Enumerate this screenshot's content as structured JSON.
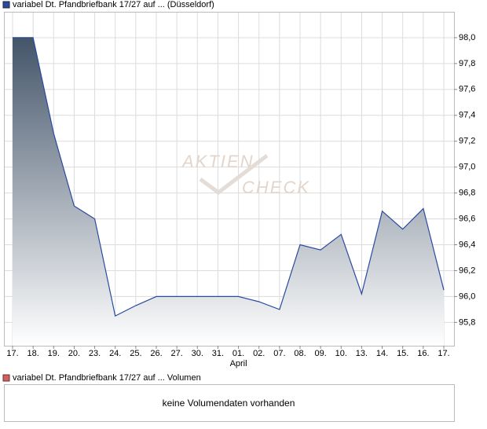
{
  "chart_data": {
    "type": "area",
    "categories": [
      "17.",
      "18.",
      "19.",
      "20.",
      "23.",
      "24.",
      "25.",
      "26.",
      "27.",
      "30.",
      "31.",
      "01.",
      "02.",
      "07.",
      "08.",
      "09.",
      "10.",
      "13.",
      "14.",
      "15.",
      "16.",
      "17."
    ],
    "x_group_labels": [
      null,
      null,
      null,
      null,
      null,
      null,
      null,
      null,
      null,
      null,
      null,
      "April",
      null,
      null,
      null,
      null,
      null,
      null,
      null,
      null,
      null,
      null
    ],
    "series": [
      {
        "name": "variabel Dt. Pfandbriefbank 17/27 auf ... (Düsseldorf)",
        "color": "#2a4aa0",
        "values": [
          98.0,
          98.0,
          97.26,
          96.7,
          96.6,
          95.85,
          95.93,
          96.0,
          96.0,
          96.0,
          96.0,
          96.0,
          95.96,
          95.9,
          96.4,
          96.36,
          96.48,
          96.02,
          96.66,
          96.52,
          96.68,
          96.05
        ]
      }
    ],
    "ylim": [
      95.62,
      98.2
    ],
    "yticks": [
      {
        "value": 95.8,
        "label": "95,8"
      },
      {
        "value": 96.0,
        "label": "96,0"
      },
      {
        "value": 96.2,
        "label": "96,2"
      },
      {
        "value": 96.4,
        "label": "96,4"
      },
      {
        "value": 96.6,
        "label": "96,6"
      },
      {
        "value": 96.8,
        "label": "96,8"
      },
      {
        "value": 97.0,
        "label": "97,0"
      },
      {
        "value": 97.2,
        "label": "97,2"
      },
      {
        "value": 97.4,
        "label": "97,4"
      },
      {
        "value": 97.6,
        "label": "97,6"
      },
      {
        "value": 97.8,
        "label": "97,8"
      },
      {
        "value": 98.0,
        "label": "98,0"
      }
    ],
    "grid": true,
    "watermark": [
      "AKTIEN",
      "CHECK"
    ]
  },
  "volume_panel": {
    "legend": "variabel Dt. Pfandbriefbank 17/27 auf ... Volumen",
    "color": "#d06060",
    "message": "keine Volumendaten vorhanden"
  }
}
